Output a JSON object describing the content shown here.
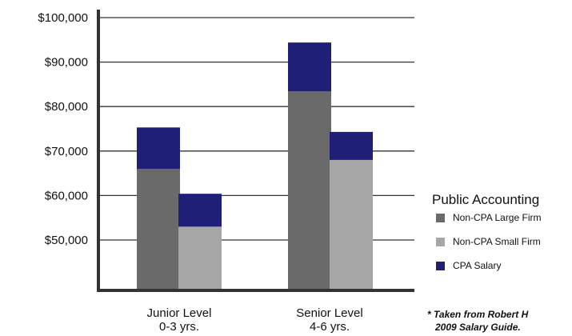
{
  "chart_data": {
    "type": "bar",
    "stacked": true,
    "title": "",
    "xlabel": "",
    "ylabel": "",
    "ylim": [
      40000,
      100000
    ],
    "y_ticks": [
      "$100,000",
      "$90,000",
      "$80,000",
      "$70,000",
      "$60,000",
      "$50,000"
    ],
    "y_tick_values": [
      100000,
      90000,
      80000,
      70000,
      60000,
      50000
    ],
    "grid": true,
    "categories": [
      {
        "line1": "Junior Level",
        "line2": "0-3 yrs."
      },
      {
        "line1": "Senior Level",
        "line2": "4-6 yrs."
      }
    ],
    "bars": [
      {
        "group": 0,
        "base_series": "Non-CPA Large Firm",
        "base": 66000,
        "total": 75300
      },
      {
        "group": 0,
        "base_series": "Non-CPA Small Firm",
        "base": 53000,
        "total": 60400
      },
      {
        "group": 1,
        "base_series": "Non-CPA Large Firm",
        "base": 83400,
        "total": 94400
      },
      {
        "group": 1,
        "base_series": "Non-CPA Small Firm",
        "base": 68000,
        "total": 74300
      }
    ],
    "legend": {
      "title": "Public Accounting",
      "position": "right",
      "items": [
        {
          "label": "Non-CPA Large Firm",
          "color": "#6a6a6a"
        },
        {
          "label": "Non-CPA Small Firm",
          "color": "#a6a6a6"
        },
        {
          "label": "CPA Salary",
          "color": "#1f1f78"
        }
      ]
    },
    "footnote": {
      "line1": "* Taken from Robert H",
      "line2": "2009 Salary Guide."
    }
  }
}
